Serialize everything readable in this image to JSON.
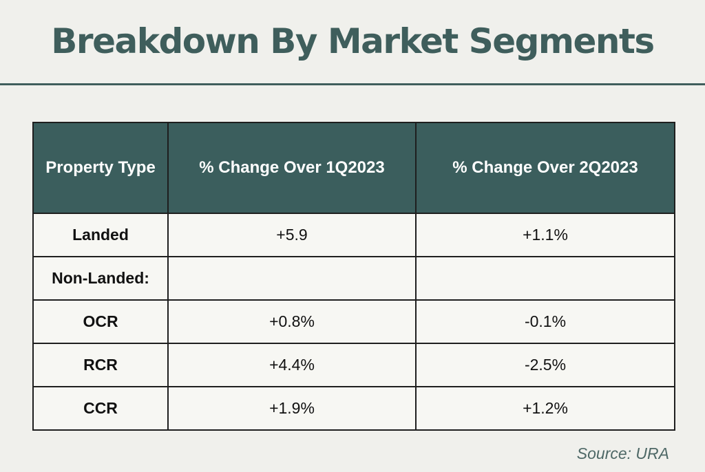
{
  "title": "Breakdown By Market Segments",
  "source": "Source: URA",
  "colors": {
    "accent": "#3f5e5c",
    "header_fill": "#3b5e5d",
    "background": "#f0f0ec"
  },
  "chart_data": {
    "type": "table",
    "columns": [
      "Property Type",
      "% Change Over 1Q2023",
      "% Change Over 2Q2023"
    ],
    "rows": [
      [
        "Landed",
        "+5.9",
        "+1.1%"
      ],
      [
        "Non-Landed:",
        "",
        ""
      ],
      [
        "OCR",
        "+0.8%",
        "-0.1%"
      ],
      [
        "RCR",
        "+4.4%",
        "-2.5%"
      ],
      [
        "CCR",
        "+1.9%",
        "+1.2%"
      ]
    ]
  }
}
